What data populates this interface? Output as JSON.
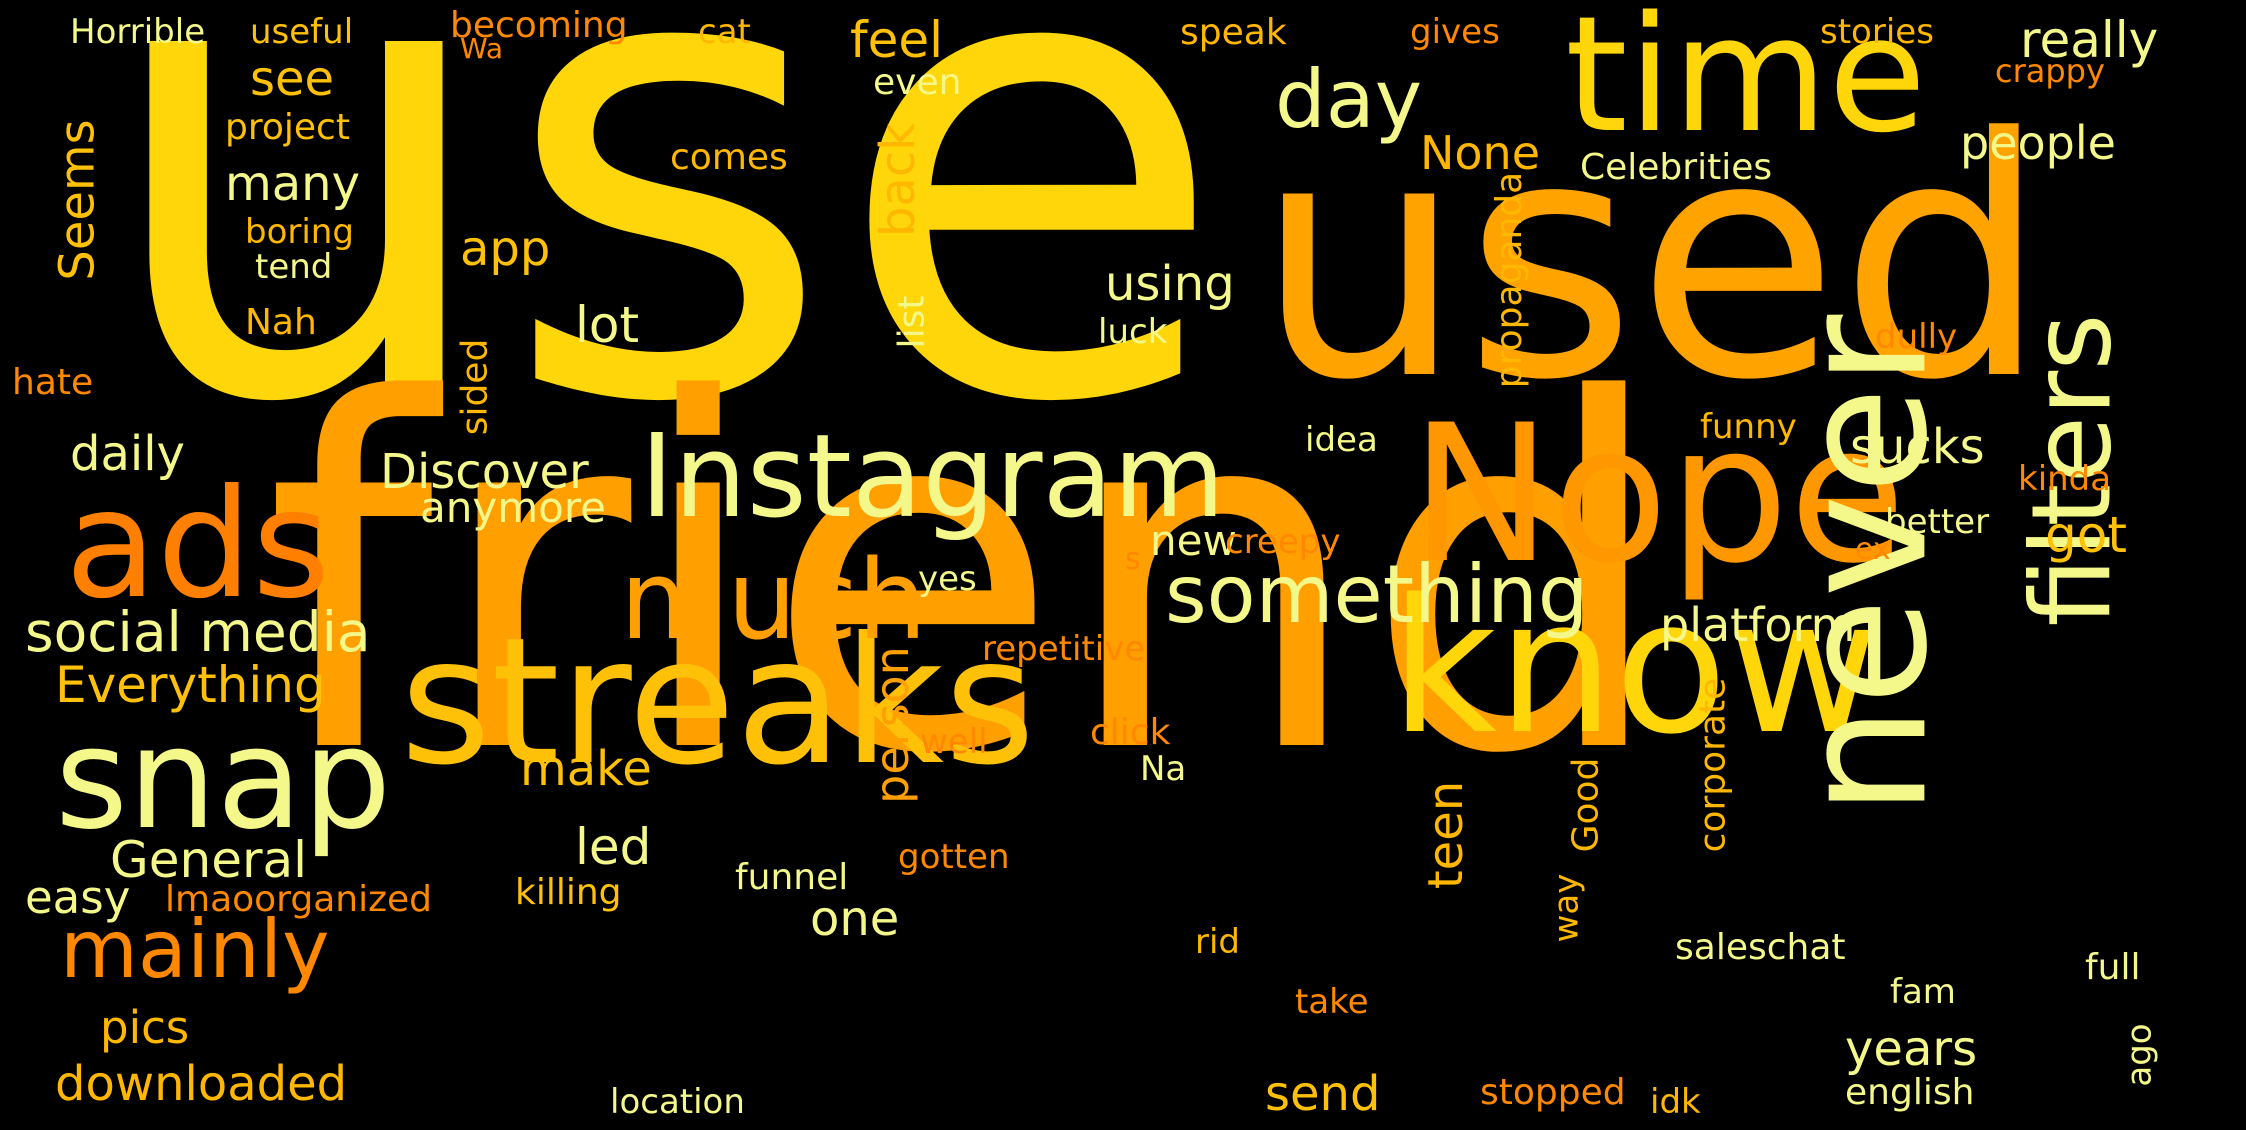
{
  "colors": {
    "background": "#000000",
    "gold": "#FFD60A",
    "orange": "#FF9F00",
    "dark_orange": "#FF7F00",
    "pale_yellow": "#F4F88A",
    "amber": "#FFB700"
  },
  "words": [
    {
      "text": "use",
      "color": "#FFD60A",
      "vertical": false
    },
    {
      "text": "friend",
      "color": "#FF9F00",
      "vertical": false
    },
    {
      "text": "used",
      "color": "#FFA300",
      "vertical": false
    },
    {
      "text": "streaks",
      "color": "#FFC107",
      "vertical": false
    },
    {
      "text": "time",
      "color": "#FFD60A",
      "vertical": false
    },
    {
      "text": "Nope",
      "color": "#FF9800",
      "vertical": false
    },
    {
      "text": "know",
      "color": "#FFD60A",
      "vertical": false
    },
    {
      "text": "never",
      "color": "#F4F88A",
      "vertical": true
    },
    {
      "text": "filters",
      "color": "#F4F88A",
      "vertical": true
    },
    {
      "text": "Instagram",
      "color": "#F4F88A",
      "vertical": false
    },
    {
      "text": "ads",
      "color": "#FF8000",
      "vertical": false
    },
    {
      "text": "snap",
      "color": "#F4F88A",
      "vertical": false
    },
    {
      "text": "much",
      "color": "#FF9F00",
      "vertical": false
    },
    {
      "text": "something",
      "color": "#F4F88A",
      "vertical": false
    },
    {
      "text": "day",
      "color": "#F4F88A",
      "vertical": false
    },
    {
      "text": "mainly",
      "color": "#FF8800",
      "vertical": false
    },
    {
      "text": "social media",
      "color": "#F4F88A",
      "vertical": false
    },
    {
      "text": "Everything",
      "color": "#FFC107",
      "vertical": false
    },
    {
      "text": "General",
      "color": "#F4F88A",
      "vertical": false
    },
    {
      "text": "easy",
      "color": "#F4F88A",
      "vertical": false
    },
    {
      "text": "lmaoorganized",
      "color": "#FF8800",
      "vertical": false
    },
    {
      "text": "pics",
      "color": "#FFB700",
      "vertical": false
    },
    {
      "text": "downloaded",
      "color": "#FFB700",
      "vertical": false
    },
    {
      "text": "Horrible",
      "color": "#F4F88A",
      "vertical": false
    },
    {
      "text": "useful",
      "color": "#FFC107",
      "vertical": false
    },
    {
      "text": "becoming",
      "color": "#FF8800",
      "vertical": false
    },
    {
      "text": "Wa",
      "color": "#FF8800",
      "vertical": false
    },
    {
      "text": "cat",
      "color": "#FFB700",
      "vertical": false
    },
    {
      "text": "feel",
      "color": "#FFC107",
      "vertical": false
    },
    {
      "text": "speak",
      "color": "#FFB700",
      "vertical": false
    },
    {
      "text": "gives",
      "color": "#FF8800",
      "vertical": false
    },
    {
      "text": "stories",
      "color": "#FFB700",
      "vertical": false
    },
    {
      "text": "really",
      "color": "#F4F88A",
      "vertical": false
    },
    {
      "text": "crappy",
      "color": "#FF8800",
      "vertical": false
    },
    {
      "text": "see",
      "color": "#FFC107",
      "vertical": false
    },
    {
      "text": "even",
      "color": "#F4F88A",
      "vertical": false
    },
    {
      "text": "project",
      "color": "#FFC107",
      "vertical": false
    },
    {
      "text": "Seems",
      "color": "#FFC107",
      "vertical": true
    },
    {
      "text": "many",
      "color": "#F4F88A",
      "vertical": false
    },
    {
      "text": "boring",
      "color": "#FFB700",
      "vertical": false
    },
    {
      "text": "tend",
      "color": "#F4F88A",
      "vertical": false
    },
    {
      "text": "Nah",
      "color": "#FFB700",
      "vertical": false
    },
    {
      "text": "hate",
      "color": "#FF8800",
      "vertical": false
    },
    {
      "text": "comes",
      "color": "#FFB700",
      "vertical": false
    },
    {
      "text": "back",
      "color": "#FFB700",
      "vertical": true
    },
    {
      "text": "None",
      "color": "#FFB700",
      "vertical": false
    },
    {
      "text": "people",
      "color": "#F4F88A",
      "vertical": false
    },
    {
      "text": "Celebrities",
      "color": "#F4F88A",
      "vertical": false
    },
    {
      "text": "propaganda",
      "color": "#FFB700",
      "vertical": true
    },
    {
      "text": "app",
      "color": "#FFC107",
      "vertical": false
    },
    {
      "text": "using",
      "color": "#F4F88A",
      "vertical": false
    },
    {
      "text": "luck",
      "color": "#F4F88A",
      "vertical": false
    },
    {
      "text": "lot",
      "color": "#F4F88A",
      "vertical": false
    },
    {
      "text": "list",
      "color": "#F4F88A",
      "vertical": true
    },
    {
      "text": "sided",
      "color": "#FFB700",
      "vertical": true
    },
    {
      "text": "dully",
      "color": "#FF8800",
      "vertical": false
    },
    {
      "text": "daily",
      "color": "#F4F88A",
      "vertical": false
    },
    {
      "text": "Discover",
      "color": "#F4F88A",
      "vertical": false
    },
    {
      "text": "anymore",
      "color": "#F4F88A",
      "vertical": false
    },
    {
      "text": "funny",
      "color": "#FFB700",
      "vertical": false
    },
    {
      "text": "idea",
      "color": "#F4F88A",
      "vertical": false
    },
    {
      "text": "sucks",
      "color": "#F4F88A",
      "vertical": false
    },
    {
      "text": "kinda",
      "color": "#FF8800",
      "vertical": false
    },
    {
      "text": "better",
      "color": "#F4F88A",
      "vertical": false
    },
    {
      "text": "got",
      "color": "#FFC107",
      "vertical": false
    },
    {
      "text": "new",
      "color": "#F4F88A",
      "vertical": false
    },
    {
      "text": "creepy",
      "color": "#FF8800",
      "vertical": false
    },
    {
      "text": "s",
      "color": "#FF8800",
      "vertical": false
    },
    {
      "text": "ex",
      "color": "#FF8800",
      "vertical": false
    },
    {
      "text": "yes",
      "color": "#F4F88A",
      "vertical": false
    },
    {
      "text": "platform",
      "color": "#F4F88A",
      "vertical": false
    },
    {
      "text": "repetitive",
      "color": "#FF8800",
      "vertical": false
    },
    {
      "text": "person",
      "color": "#FF9F00",
      "vertical": true
    },
    {
      "text": "make",
      "color": "#FFC107",
      "vertical": false
    },
    {
      "text": "well",
      "color": "#FF8800",
      "vertical": false
    },
    {
      "text": "click",
      "color": "#FF8800",
      "vertical": false
    },
    {
      "text": "Na",
      "color": "#F4F88A",
      "vertical": false
    },
    {
      "text": "corporate",
      "color": "#FFB700",
      "vertical": true
    },
    {
      "text": "Good",
      "color": "#FFB700",
      "vertical": true
    },
    {
      "text": "led",
      "color": "#F4F88A",
      "vertical": false
    },
    {
      "text": "teen",
      "color": "#FFB700",
      "vertical": true
    },
    {
      "text": "years",
      "color": "#F4F88A",
      "vertical": false
    },
    {
      "text": "gotten",
      "color": "#FF8800",
      "vertical": false
    },
    {
      "text": "funnel",
      "color": "#F4F88A",
      "vertical": false
    },
    {
      "text": "killing",
      "color": "#FFC107",
      "vertical": false
    },
    {
      "text": "one",
      "color": "#F4F88A",
      "vertical": false
    },
    {
      "text": "way",
      "color": "#FFB700",
      "vertical": true
    },
    {
      "text": "rid",
      "color": "#FFB700",
      "vertical": false
    },
    {
      "text": "saleschat",
      "color": "#F4F88A",
      "vertical": false
    },
    {
      "text": "full",
      "color": "#F4F88A",
      "vertical": false
    },
    {
      "text": "fam",
      "color": "#F4F88A",
      "vertical": false
    },
    {
      "text": "ago",
      "color": "#F4F88A",
      "vertical": true
    },
    {
      "text": "take",
      "color": "#FF8800",
      "vertical": false
    },
    {
      "text": "send",
      "color": "#FFC107",
      "vertical": false
    },
    {
      "text": "location",
      "color": "#F4F88A",
      "vertical": false
    },
    {
      "text": "stopped",
      "color": "#FF8800",
      "vertical": false
    },
    {
      "text": "idk",
      "color": "#FFB700",
      "vertical": false
    },
    {
      "text": "english",
      "color": "#F4F88A",
      "vertical": false
    }
  ]
}
